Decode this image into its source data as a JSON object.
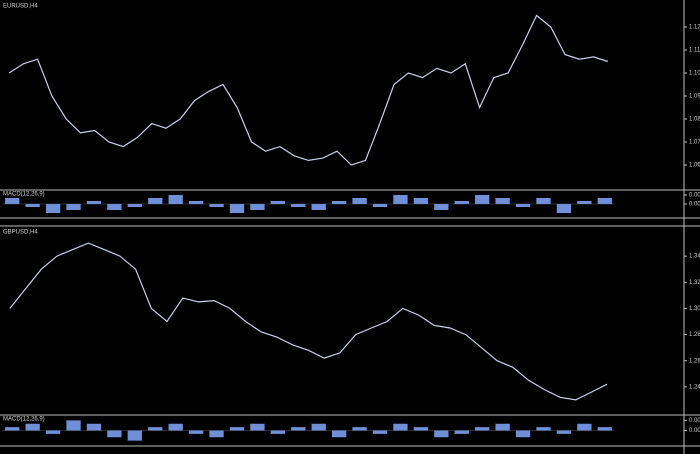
{
  "chart_data": [
    {
      "type": "line",
      "title": "EURUSD,H4",
      "color": "#c8d0ec",
      "values": [
        1.1,
        1.104,
        1.106,
        1.09,
        1.08,
        1.074,
        1.075,
        1.07,
        1.068,
        1.072,
        1.078,
        1.076,
        1.08,
        1.088,
        1.092,
        1.095,
        1.085,
        1.07,
        1.066,
        1.068,
        1.064,
        1.062,
        1.063,
        1.066,
        1.06,
        1.062,
        1.078,
        1.095,
        1.1,
        1.098,
        1.102,
        1.1,
        1.104,
        1.085,
        1.098,
        1.1,
        1.112,
        1.125,
        1.12,
        1.108,
        1.106,
        1.107,
        1.105
      ],
      "ylim": [
        1.05,
        1.13
      ],
      "yticks": [
        {
          "value": 1.06,
          "label": "1.06000"
        },
        {
          "value": 1.07,
          "label": "1.07000"
        },
        {
          "value": 1.08,
          "label": "1.08000"
        },
        {
          "value": 1.09,
          "label": "1.09000"
        },
        {
          "value": 1.1,
          "label": "1.10000"
        },
        {
          "value": 1.11,
          "label": "1.11000"
        },
        {
          "value": 1.12,
          "label": "1.12000"
        }
      ]
    },
    {
      "type": "bar",
      "title": "MACD(12,26,9)",
      "color": "#6f8fd8",
      "values": [
        0.002,
        -0.001,
        -0.003,
        -0.002,
        0.001,
        -0.002,
        -0.001,
        0.002,
        0.003,
        0.001,
        -0.001,
        -0.003,
        -0.002,
        0.001,
        -0.001,
        -0.002,
        0.001,
        0.002,
        -0.001,
        0.003,
        0.002,
        -0.002,
        0.001,
        0.003,
        0.002,
        -0.001,
        0.002,
        -0.003,
        0.001,
        0.002
      ],
      "ylim": [
        -0.004,
        0.004
      ],
      "yticks": [
        {
          "value": 0,
          "label": "0.00"
        },
        {
          "value": 0.003,
          "label": "0.0030"
        }
      ]
    },
    {
      "type": "line",
      "title": "GBPUSD,H4",
      "color": "#c8d0ec",
      "values": [
        1.3,
        1.315,
        1.33,
        1.34,
        1.345,
        1.35,
        1.345,
        1.34,
        1.33,
        1.3,
        1.29,
        1.308,
        1.305,
        1.306,
        1.3,
        1.29,
        1.282,
        1.278,
        1.272,
        1.268,
        1.262,
        1.266,
        1.28,
        1.285,
        1.29,
        1.3,
        1.295,
        1.287,
        1.285,
        1.28,
        1.27,
        1.26,
        1.255,
        1.245,
        1.238,
        1.232,
        1.23,
        1.236,
        1.242
      ],
      "ylim": [
        1.22,
        1.36
      ],
      "yticks": [
        {
          "value": 1.24,
          "label": "1.24000"
        },
        {
          "value": 1.26,
          "label": "1.26000"
        },
        {
          "value": 1.28,
          "label": "1.28000"
        },
        {
          "value": 1.3,
          "label": "1.30000"
        },
        {
          "value": 1.32,
          "label": "1.32000"
        },
        {
          "value": 1.34,
          "label": "1.34000"
        }
      ]
    },
    {
      "type": "bar",
      "title": "MACD(12,26,9)",
      "color": "#6f8fd8",
      "values": [
        0.001,
        0.002,
        -0.001,
        0.003,
        0.002,
        -0.002,
        -0.003,
        0.001,
        0.002,
        -0.001,
        -0.002,
        0.001,
        0.002,
        -0.001,
        0.001,
        0.002,
        -0.002,
        0.001,
        -0.001,
        0.002,
        0.001,
        -0.002,
        -0.001,
        0.001,
        0.002,
        -0.002,
        0.001,
        -0.001,
        0.002,
        0.001
      ],
      "ylim": [
        -0.004,
        0.004
      ],
      "yticks": [
        {
          "value": 0,
          "label": "0.00"
        },
        {
          "value": 0.003,
          "label": "0.0030"
        }
      ]
    }
  ]
}
